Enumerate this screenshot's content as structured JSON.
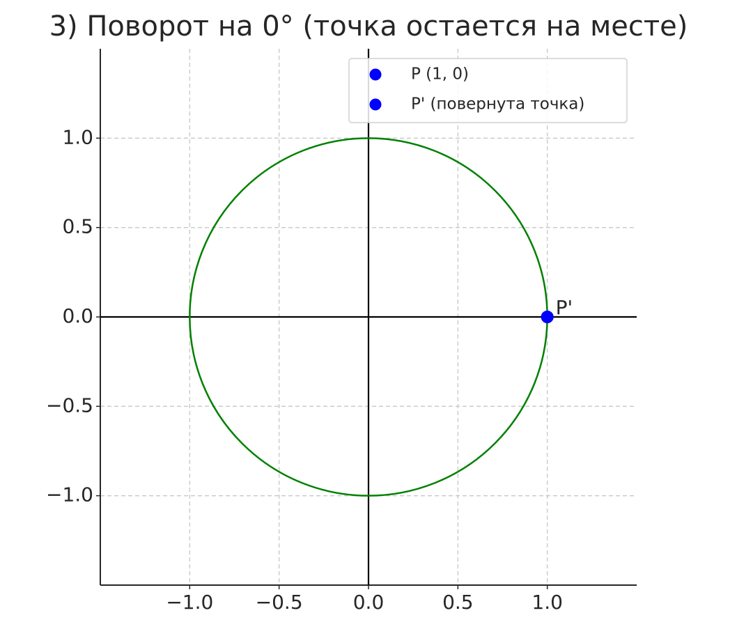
{
  "chart_data": {
    "type": "scatter",
    "title": "3) Поворот на 0° (точка остается на месте)",
    "series": [
      {
        "name": "P (1, 0)",
        "color": "#0000ff",
        "x": [
          1
        ],
        "values": [
          0
        ]
      },
      {
        "name": "P' (повернута точка)",
        "color": "#0000ff",
        "x": [
          1
        ],
        "values": [
          0
        ]
      }
    ],
    "circle": {
      "cx": 0,
      "cy": 0,
      "r": 1,
      "color": "#008000"
    },
    "axhline": 0,
    "axvline": 0,
    "annotations": [
      {
        "text": "P'",
        "x": 1,
        "y": 0
      }
    ],
    "xlim": [
      -1.5,
      1.5
    ],
    "ylim": [
      -1.5,
      1.5
    ],
    "xticks": [
      {
        "value": -1.0,
        "label": "−1.0"
      },
      {
        "value": -0.5,
        "label": "−0.5"
      },
      {
        "value": 0.0,
        "label": "0.0"
      },
      0.5,
      {
        "value": 1.0,
        "label": "1.0"
      }
    ],
    "yticks": [
      {
        "value": -1.0,
        "label": "−1.0"
      },
      {
        "value": -0.5,
        "label": "−0.5"
      },
      {
        "value": 0.0,
        "label": "0.0"
      },
      0.5,
      {
        "value": 1.0,
        "label": "1.0"
      }
    ],
    "grid": true,
    "legend": "upper right"
  }
}
